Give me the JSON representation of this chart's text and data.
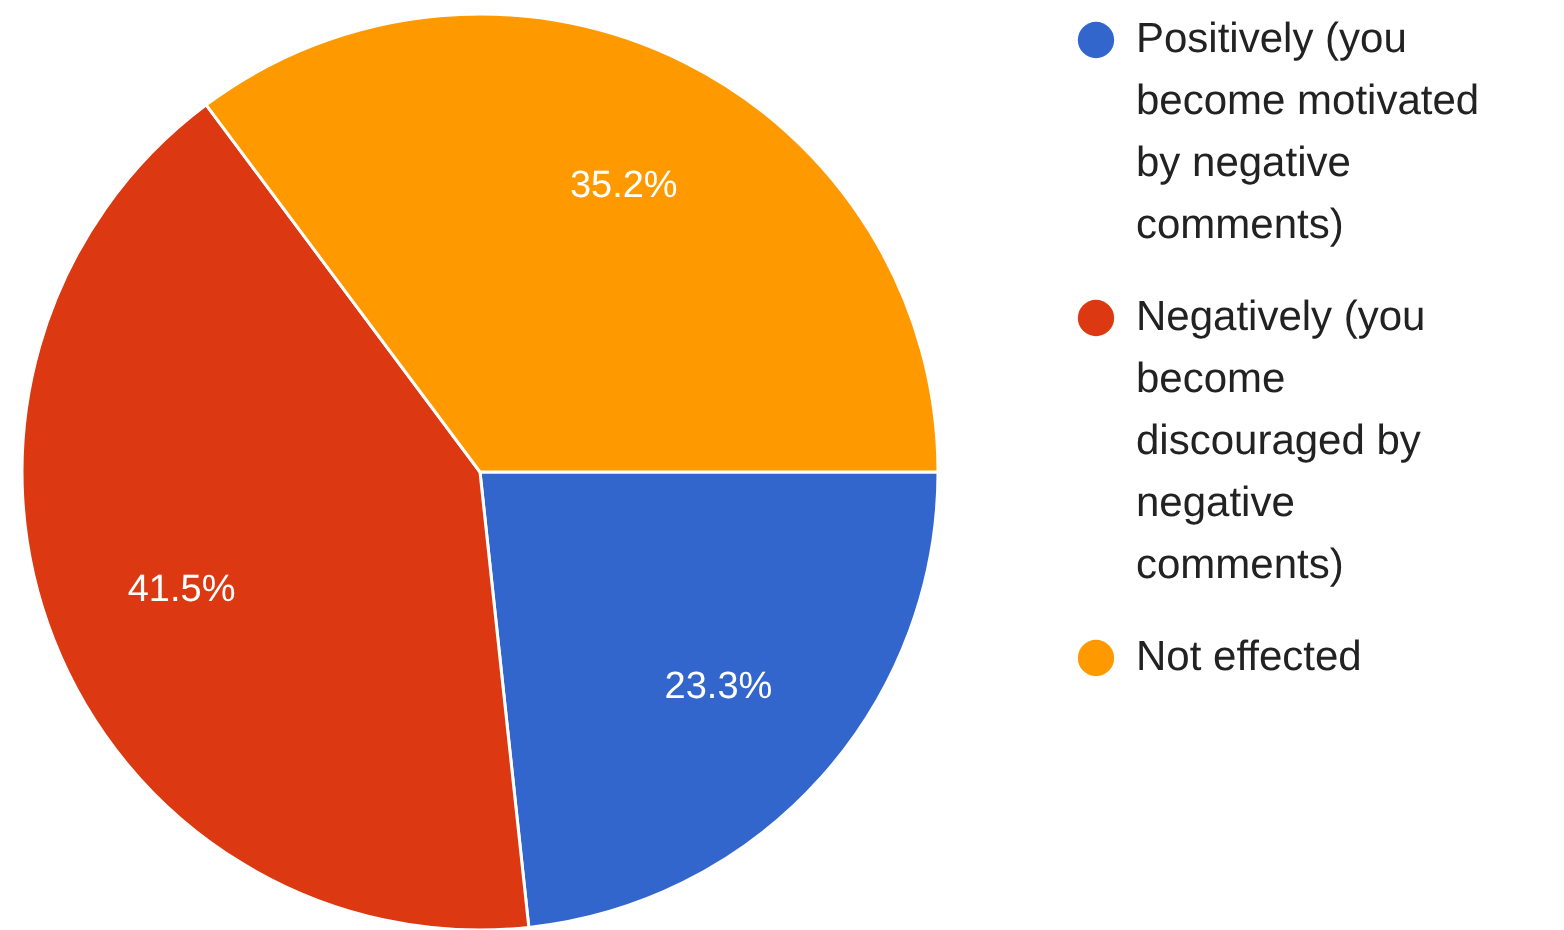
{
  "chart_data": {
    "type": "pie",
    "categories": [
      "Positively (you become motivated by negative comments)",
      "Negatively (you become discouraged by negative comments)",
      "Not effected"
    ],
    "values": [
      23.3,
      41.5,
      35.2
    ],
    "colors": [
      "#3366cc",
      "#dc3912",
      "#ff9900"
    ],
    "value_labels": [
      "23.3%",
      "41.5%",
      "35.2%"
    ],
    "legend": "right"
  }
}
